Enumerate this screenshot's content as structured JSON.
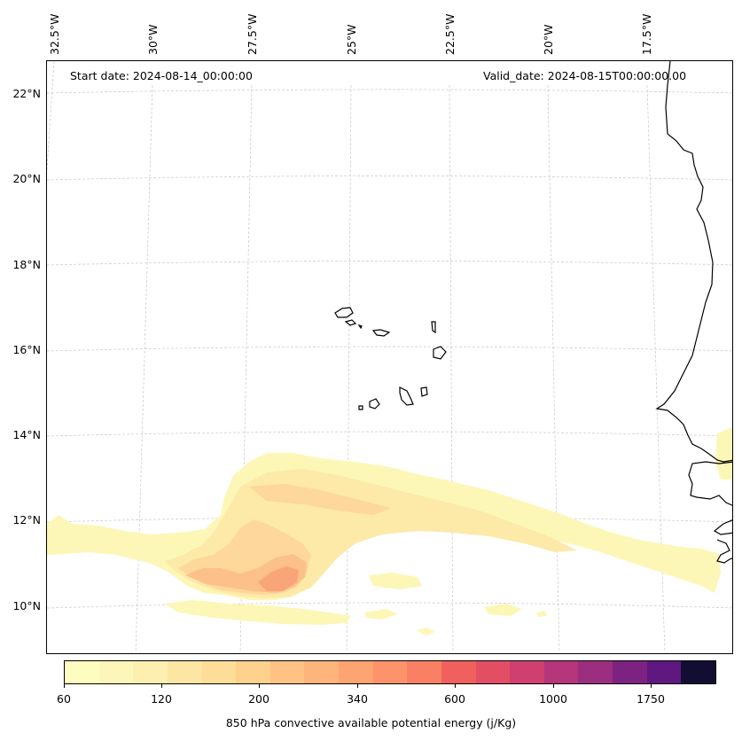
{
  "map": {
    "start_date_text": "Start date: 2024-08-14_00:00:00",
    "valid_date_text": "Valid_date: 2024-08-15T00:00:00.00",
    "longitude_labels": [
      "32.5°W",
      "30°W",
      "27.5°W",
      "25°W",
      "22.5°W",
      "20°W",
      "17.5°W"
    ],
    "latitude_labels": [
      "22°N",
      "20°N",
      "18°N",
      "16°N",
      "14°N",
      "12°N",
      "10°N"
    ],
    "gridlines": "dashed",
    "coastline_color": "#000000",
    "land_feature": "West African coastline (Senegal/Mauritania) and Cape Verde islands"
  },
  "colorbar": {
    "title": "850 hPa convective available potential energy (j/Kg)",
    "tick_labels": [
      "60",
      "120",
      "200",
      "340",
      "600",
      "1000",
      "1750"
    ],
    "colors": [
      "#fcfdbf",
      "#fcf6b8",
      "#fcefb0",
      "#fde6a3",
      "#fedd98",
      "#fed18c",
      "#fec382",
      "#feb47b",
      "#fea473",
      "#fd926b",
      "#f98064",
      "#f1605d",
      "#e34e65",
      "#cf4070",
      "#b5367a",
      "#9c2e7f",
      "#7c2382",
      "#5f187f",
      "#120d32"
    ]
  },
  "field_colors": {
    "level1": "#fcf7b6",
    "level2": "#fde9a8",
    "level3": "#fdd79b",
    "level4": "#fcc08a",
    "level5": "#f9a57a"
  }
}
